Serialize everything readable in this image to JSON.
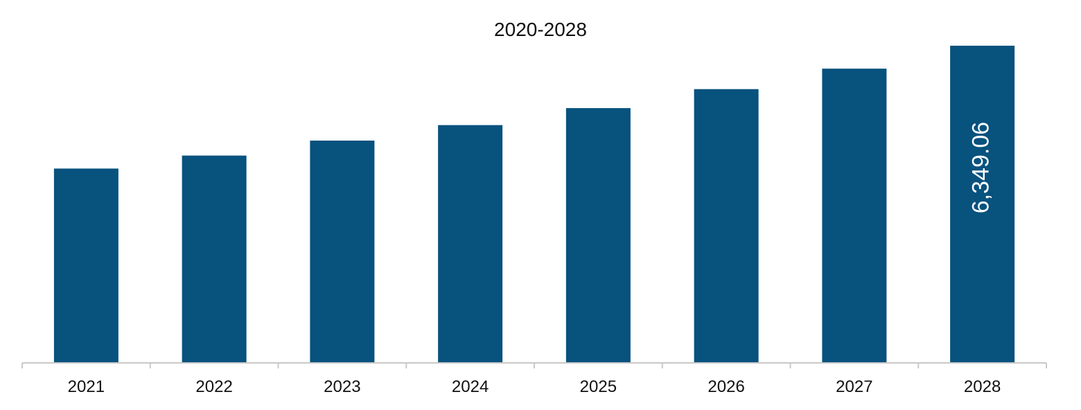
{
  "chart_data": {
    "type": "bar",
    "title": "2020-2028",
    "xlabel": "",
    "ylabel": "",
    "categories": [
      "2021",
      "2022",
      "2023",
      "2024",
      "2025",
      "2026",
      "2027",
      "2028"
    ],
    "values": [
      3890,
      4150,
      4450,
      4760,
      5100,
      5480,
      5890,
      6349.06
    ],
    "data_labels": [
      "",
      "",
      "",
      "",
      "",
      "",
      "",
      "6,349.06"
    ],
    "ylim": [
      0,
      6349.06
    ],
    "grid": false,
    "legend": "none",
    "colors": {
      "bar": "#08527E",
      "axis": "#C8C8C8",
      "text": "#111111",
      "data_label": "#FFFFFF"
    }
  }
}
